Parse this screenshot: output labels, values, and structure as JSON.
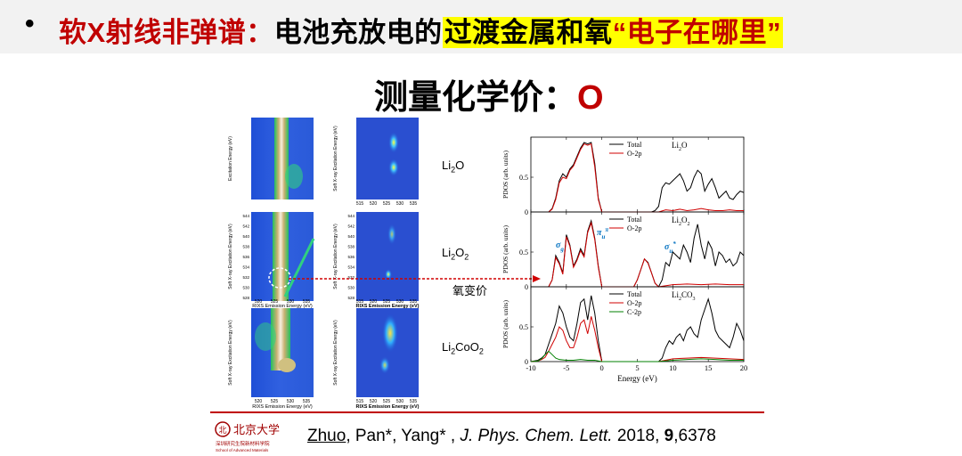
{
  "header": {
    "bullet": "•",
    "title_part1": "软X射线非弹谱：",
    "title_part2": "电池充放电的",
    "title_part3": "过渡金属和氧",
    "title_part4": "“电子在哪里”"
  },
  "subtitle": {
    "text": "测量化学价：",
    "element": "O"
  },
  "rixs_maps": {
    "rows": [
      {
        "label_main": "Li",
        "label_sub": "2",
        "label_rest": "O",
        "label_sub2": ""
      },
      {
        "label_main": "Li",
        "label_sub": "2",
        "label_rest": "O",
        "label_sub2": "2"
      },
      {
        "label_main": "Li",
        "label_sub": "2",
        "label_rest": "CoO",
        "label_sub2": "2"
      }
    ],
    "left_ylabel": "Excitation Energy (eV)",
    "left_ylabel2": "Soft X-ray Excitation Energy (eV)",
    "left_xlabel": "RIXS Emission Energy (eV)",
    "right_ylabel": "Soft X-ray Excitation Energy (eV)",
    "right_xlabel": "RIXS Emission Energy (eV)",
    "left_xticks": [
      "520",
      "525",
      "530",
      "535"
    ],
    "right_xticks": [
      "515",
      "520",
      "525",
      "530",
      "535"
    ],
    "left_yticks_row2": [
      "544",
      "542",
      "540",
      "538",
      "536",
      "534",
      "532",
      "530",
      "528"
    ],
    "right_yticks_row2": [
      "544",
      "542",
      "540",
      "538",
      "536",
      "534",
      "532",
      "530",
      "528"
    ],
    "arrow_label": "氧变价"
  },
  "chart_data": {
    "type": "line",
    "xlabel": "Energy (eV)",
    "ylabel": "PDOS (arb. units)",
    "xlim": [
      -10,
      20
    ],
    "xticks": [
      "-10",
      "-5",
      "0",
      "5",
      "10",
      "15",
      "20"
    ],
    "panels": [
      {
        "name": "Li2O",
        "label": "Li",
        "label_sub": "2",
        "label_rest": "O",
        "ylim": [
          0,
          1
        ],
        "yticks": [
          "0",
          "0.5"
        ],
        "legend": [
          "Total",
          "O-2p"
        ],
        "series": [
          {
            "name": "Total",
            "color": "#000000",
            "x": [
              -7.5,
              -7,
              -6.5,
              -6,
              -5.5,
              -5,
              -4.5,
              -4,
              -3.5,
              -3,
              -2.5,
              -2,
              -1.5,
              -1,
              -0.5,
              0,
              0.5,
              7,
              7.5,
              8,
              8.5,
              9,
              9.5,
              10,
              10.5,
              11,
              11.5,
              12,
              12.5,
              13,
              13.5,
              14,
              14.5,
              15,
              15.5,
              16,
              16.5,
              17,
              17.5,
              18,
              18.5,
              19,
              19.5,
              20
            ],
            "y": [
              0,
              0.05,
              0.2,
              0.45,
              0.55,
              0.5,
              0.62,
              0.68,
              0.8,
              0.92,
              1.0,
              0.98,
              1.0,
              0.7,
              0.2,
              0,
              0,
              0,
              0.02,
              0.08,
              0.35,
              0.42,
              0.4,
              0.45,
              0.5,
              0.55,
              0.45,
              0.3,
              0.35,
              0.5,
              0.6,
              0.55,
              0.3,
              0.4,
              0.48,
              0.35,
              0.2,
              0.25,
              0.3,
              0.2,
              0.18,
              0.25,
              0.3,
              0.28
            ]
          },
          {
            "name": "O-2p",
            "color": "#d00000",
            "x": [
              -7.5,
              -7,
              -6.5,
              -6,
              -5.5,
              -5,
              -4.5,
              -4,
              -3.5,
              -3,
              -2.5,
              -2,
              -1.5,
              -1,
              -0.5,
              0,
              0.5,
              8,
              9,
              10,
              11,
              12,
              13,
              14,
              15,
              16,
              17,
              18,
              19,
              20
            ],
            "y": [
              0,
              0.04,
              0.18,
              0.42,
              0.5,
              0.48,
              0.6,
              0.66,
              0.78,
              0.9,
              0.98,
              0.96,
              0.98,
              0.65,
              0.18,
              0,
              0,
              0,
              0.03,
              0.02,
              0.04,
              0.02,
              0.03,
              0.05,
              0.03,
              0.02,
              0.02,
              0.03,
              0.02,
              0.02
            ]
          }
        ]
      },
      {
        "name": "Li2O2",
        "label": "Li",
        "label_sub": "2",
        "label_rest": "O",
        "label_sub2": "2",
        "yticks": [
          "0",
          "0.5"
        ],
        "legend": [
          "Total",
          "O-2p"
        ],
        "annotations": [
          {
            "text": "σ",
            "sub": "g",
            "color": "#0070c0"
          },
          {
            "text": "π",
            "sub": "u",
            "extra": "π",
            "color": "#0070c0"
          },
          {
            "text": "σ",
            "sub": "u",
            "extra": "*",
            "color": "#0070c0"
          }
        ],
        "series": [
          {
            "name": "Total",
            "color": "#000000",
            "x": [
              -7.5,
              -7,
              -6.5,
              -6,
              -5.5,
              -5,
              -4.5,
              -4,
              -3.5,
              -3,
              -2.5,
              -2,
              -1.5,
              -1,
              -0.5,
              0,
              4.5,
              5,
              5.5,
              6,
              6.5,
              7,
              7.5,
              8,
              8.5,
              9,
              9.5,
              10,
              10.5,
              11,
              11.5,
              12,
              12.5,
              13,
              13.5,
              14,
              14.5,
              15,
              15.5,
              16,
              16.5,
              17,
              17.5,
              18,
              18.5,
              19,
              19.5,
              20
            ],
            "y": [
              0,
              0.1,
              0.45,
              0.35,
              0.2,
              0.75,
              0.6,
              0.3,
              0.4,
              0.55,
              0.45,
              0.8,
              0.95,
              0.7,
              0.3,
              0,
              0,
              0.1,
              0.25,
              0.4,
              0.35,
              0.2,
              0.05,
              0,
              0.1,
              0.35,
              0.3,
              0.5,
              0.45,
              0.4,
              0.6,
              0.5,
              0.35,
              0.7,
              0.9,
              0.6,
              0.4,
              0.65,
              0.55,
              0.3,
              0.5,
              0.45,
              0.35,
              0.4,
              0.3,
              0.35,
              0.5,
              0.45
            ]
          },
          {
            "name": "O-2p",
            "color": "#d00000",
            "x": [
              -7.5,
              -7,
              -6.5,
              -6,
              -5.5,
              -5,
              -4.5,
              -4,
              -3.5,
              -3,
              -2.5,
              -2,
              -1.5,
              -1,
              -0.5,
              0,
              4.5,
              5,
              5.5,
              6,
              6.5,
              7,
              7.5,
              8,
              10,
              12,
              14,
              16,
              18,
              20
            ],
            "y": [
              0,
              0.1,
              0.42,
              0.33,
              0.18,
              0.72,
              0.58,
              0.28,
              0.38,
              0.52,
              0.43,
              0.78,
              0.92,
              0.68,
              0.28,
              0,
              0,
              0.1,
              0.25,
              0.4,
              0.34,
              0.2,
              0.05,
              0,
              0.03,
              0.04,
              0.03,
              0.04,
              0.03,
              0.03
            ]
          }
        ]
      },
      {
        "name": "Li2CO3",
        "label": "Li",
        "label_sub": "2",
        "label_rest": "CO",
        "label_sub2": "3",
        "yticks": [
          "0",
          "0.5"
        ],
        "legend": [
          "Total",
          "O-2p",
          "C-2p"
        ],
        "series": [
          {
            "name": "Total",
            "color": "#000000",
            "x": [
              -10,
              -9,
              -8.5,
              -8,
              -7.5,
              -7,
              -6.5,
              -6,
              -5.5,
              -5,
              -4.5,
              -4,
              -3.5,
              -3,
              -2.5,
              -2,
              -1.5,
              -1,
              -0.5,
              0,
              8,
              8.5,
              9,
              9.5,
              10,
              10.5,
              11,
              11.5,
              12,
              12.5,
              13,
              13.5,
              14,
              14.5,
              15,
              15.5,
              16,
              16.5,
              17,
              17.5,
              18,
              18.5,
              19,
              19.5,
              20
            ],
            "y": [
              0,
              0.02,
              0.05,
              0.1,
              0.25,
              0.4,
              0.55,
              0.8,
              0.7,
              0.5,
              0.35,
              0.3,
              0.55,
              0.85,
              0.9,
              0.6,
              0.95,
              0.7,
              0.3,
              0,
              0,
              0.05,
              0.2,
              0.3,
              0.25,
              0.35,
              0.4,
              0.3,
              0.45,
              0.5,
              0.4,
              0.35,
              0.6,
              0.75,
              0.9,
              0.7,
              0.45,
              0.35,
              0.3,
              0.25,
              0.2,
              0.35,
              0.55,
              0.45,
              0.3
            ]
          },
          {
            "name": "O-2p",
            "color": "#d00000",
            "x": [
              -10,
              -9,
              -8.5,
              -8,
              -7.5,
              -7,
              -6.5,
              -6,
              -5.5,
              -5,
              -4.5,
              -4,
              -3.5,
              -3,
              -2.5,
              -2,
              -1.5,
              -1,
              -0.5,
              0,
              8,
              10,
              12,
              14,
              16,
              18,
              20
            ],
            "y": [
              0,
              0.01,
              0.03,
              0.06,
              0.15,
              0.25,
              0.35,
              0.5,
              0.45,
              0.3,
              0.2,
              0.2,
              0.35,
              0.55,
              0.6,
              0.4,
              0.65,
              0.45,
              0.2,
              0,
              0,
              0.04,
              0.05,
              0.06,
              0.05,
              0.04,
              0.03
            ]
          },
          {
            "name": "C-2p",
            "color": "#008000",
            "x": [
              -10,
              -9,
              -8.5,
              -8,
              -7.5,
              -7,
              -6.5,
              -6,
              -5,
              -4,
              -3,
              -2,
              -1,
              0,
              8,
              10,
              12,
              14,
              16,
              18,
              20
            ],
            "y": [
              0,
              0.01,
              0.04,
              0.1,
              0.15,
              0.1,
              0.05,
              0.03,
              0.02,
              0.02,
              0.03,
              0.02,
              0.02,
              0,
              0,
              0.02,
              0.03,
              0.04,
              0.03,
              0.02,
              0.02
            ]
          }
        ]
      }
    ]
  },
  "footer": {
    "logo_name": "北京大学",
    "logo_sub1": "深圳研究生院新材料学院",
    "logo_sub2": "School of Advanced Materials",
    "cite_author1": "Zhuo",
    "cite_rest": ", Pan*, Yang* , ",
    "cite_journal": "J. Phys. Chem. Lett.",
    "cite_year": " 2018, ",
    "cite_volume": "9",
    "cite_pages": ",6378"
  }
}
